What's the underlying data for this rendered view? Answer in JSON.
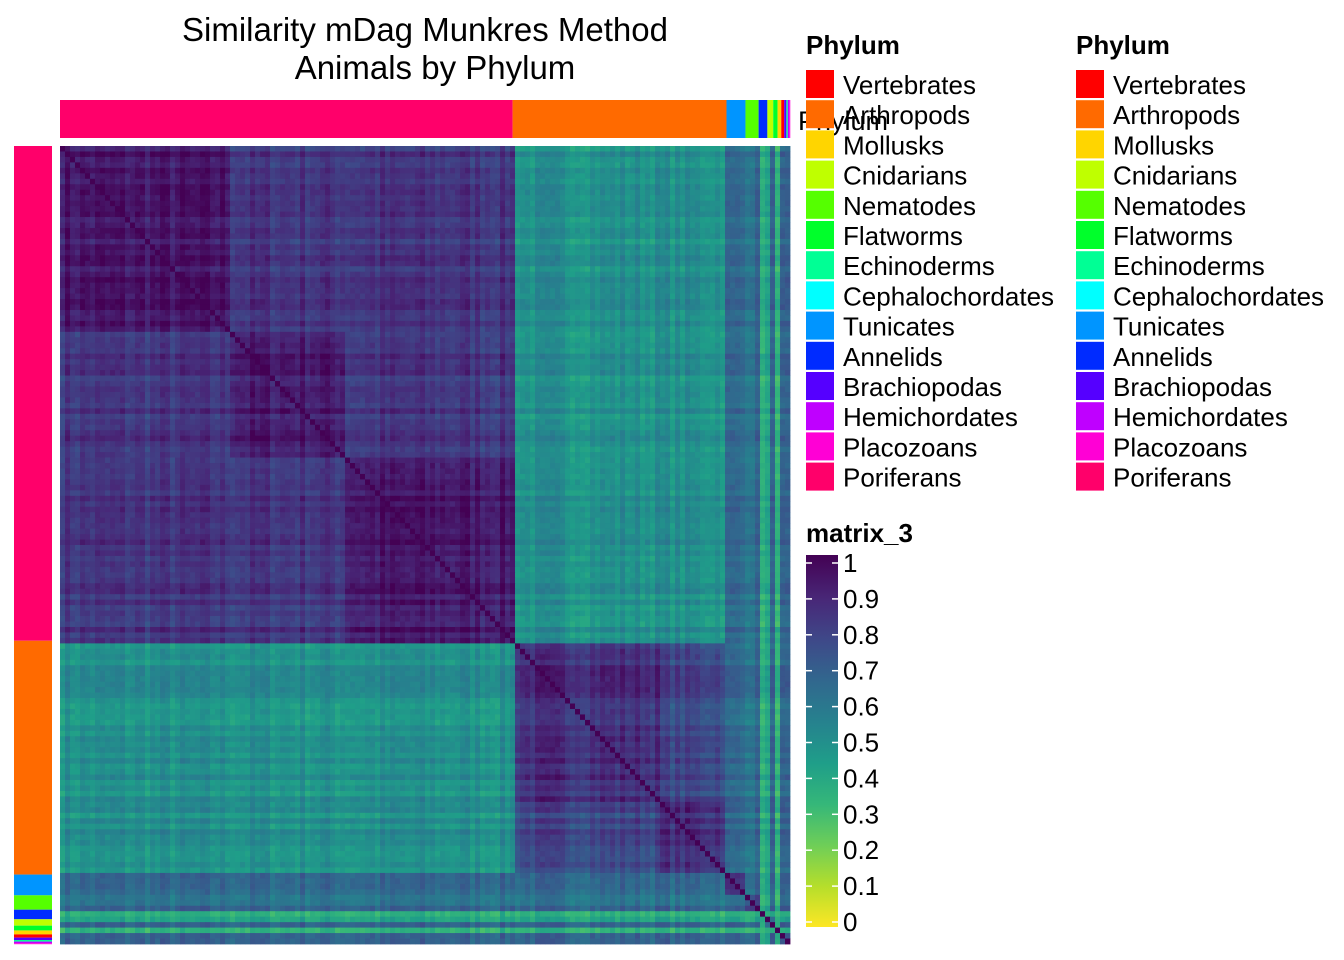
{
  "chart_data": {
    "type": "heatmap",
    "title": [
      "Similarity mDag Munkres  Method",
      "Animals by Phylum"
    ],
    "annotation_label": "Phylum",
    "phyla": [
      {
        "name": "Vertebrates",
        "color": "#FF0000"
      },
      {
        "name": "Arthropods",
        "color": "#FF6A00"
      },
      {
        "name": "Mollusks",
        "color": "#FFD500"
      },
      {
        "name": "Cnidarians",
        "color": "#BFFF00"
      },
      {
        "name": "Nematodes",
        "color": "#55FF00"
      },
      {
        "name": "Flatworms",
        "color": "#00FF2B"
      },
      {
        "name": "Echinoderms",
        "color": "#00FF95"
      },
      {
        "name": "Cephalochordates",
        "color": "#00FFFF"
      },
      {
        "name": "Tunicates",
        "color": "#0095FF"
      },
      {
        "name": "Annelids",
        "color": "#002BFF"
      },
      {
        "name": "Brachiopodas",
        "color": "#5500FF"
      },
      {
        "name": "Hemichordates",
        "color": "#BF00FF"
      },
      {
        "name": "Placozoans",
        "color": "#FF00D5"
      },
      {
        "name": "Poriferans",
        "color": "#FF006A"
      }
    ],
    "group_order": [
      "Poriferans",
      "Arthropods",
      "Tunicates",
      "Nematodes",
      "Annelids",
      "Cnidarians",
      "Flatworms",
      "Mollusks",
      "Vertebrates",
      "Brachiopodas",
      "Echinoderms",
      "Hemichordates",
      "Placozoans"
    ],
    "group_fraction": [
      0.62,
      0.293,
      0.026,
      0.018,
      0.012,
      0.008,
      0.006,
      0.005,
      0.004,
      0.003,
      0.002,
      0.002,
      0.001
    ],
    "subclusters_poriferans": [
      0.38,
      0.25,
      0.37
    ],
    "subclusters_arthropods": [
      0.7,
      0.3
    ],
    "similarity_summary": {
      "diagonal": 1.0,
      "within_poriferans_subcluster": 0.93,
      "between_poriferans_subclusters": 0.84,
      "within_arthropods": 0.87,
      "poriferans_vs_arthropods": 0.5,
      "minor_phyla_vs_others": 0.65,
      "yellow_stripe_rows": 0.4
    },
    "legend_titles": [
      "Phylum",
      "Phylum"
    ],
    "colorbar": {
      "title": "matrix_3",
      "ticks": [
        "1",
        "0.9",
        "0.8",
        "0.7",
        "0.6",
        "0.5",
        "0.4",
        "0.3",
        "0.2",
        "0.1",
        "0"
      ],
      "range": [
        0,
        1
      ],
      "colormap": "viridis-reversed",
      "colors": [
        "#FDE725",
        "#B5DE2B",
        "#6ECE58",
        "#35B779",
        "#1F9E89",
        "#26828E",
        "#31688E",
        "#3E4989",
        "#482878",
        "#440154"
      ]
    }
  }
}
